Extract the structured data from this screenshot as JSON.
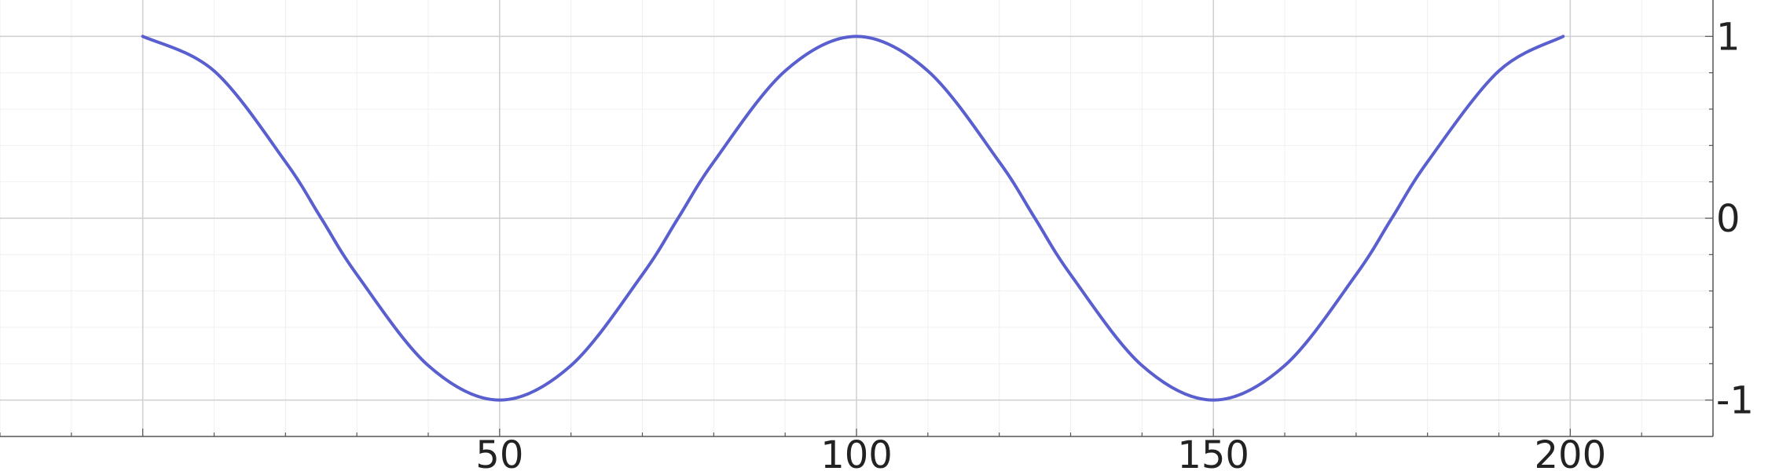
{
  "chart_data": {
    "type": "line",
    "title": "",
    "xlabel": "",
    "ylabel": "",
    "xlim": [
      -20,
      220
    ],
    "ylim": [
      -1.2,
      1.2
    ],
    "xticks": [
      50,
      100,
      150,
      200
    ],
    "xtick_labels": [
      "50",
      "100",
      "150",
      "200"
    ],
    "yticks": [
      -1,
      0,
      1
    ],
    "ytick_labels": [
      "-1",
      "0",
      "1"
    ],
    "y_axis_side": "right",
    "grid": true,
    "line_color": "#5a5fcf",
    "series": [
      {
        "x": [
          0,
          10,
          20,
          25,
          30,
          40,
          50,
          60,
          70,
          75,
          80,
          90,
          100,
          110,
          120,
          125,
          130,
          140,
          150,
          160,
          170,
          175,
          180,
          190,
          199
        ],
        "values": [
          1,
          0.81,
          0.31,
          0,
          -0.31,
          -0.81,
          -1,
          -0.81,
          -0.31,
          0,
          0.31,
          0.81,
          1,
          0.81,
          0.31,
          0,
          -0.31,
          -0.81,
          -1,
          -0.81,
          -0.31,
          0,
          0.31,
          0.81,
          1
        ]
      }
    ]
  }
}
